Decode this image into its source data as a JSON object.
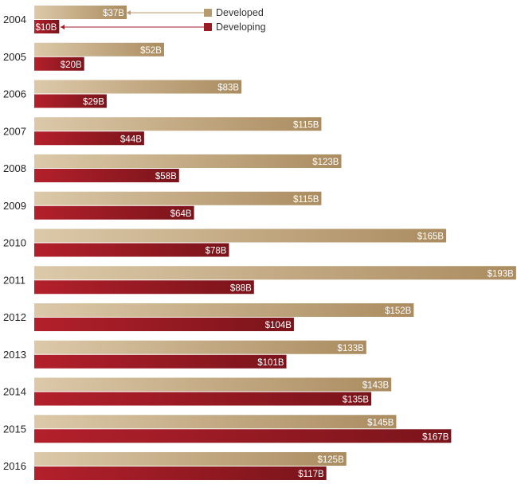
{
  "chart_data": {
    "type": "bar",
    "orientation": "horizontal",
    "categories": [
      "2004",
      "2005",
      "2006",
      "2007",
      "2008",
      "2009",
      "2010",
      "2011",
      "2012",
      "2013",
      "2014",
      "2015",
      "2016"
    ],
    "series": [
      {
        "name": "Developed",
        "color": "#b79a6f",
        "values": [
          37,
          52,
          83,
          115,
          123,
          115,
          165,
          193,
          152,
          133,
          143,
          145,
          125
        ],
        "labels": [
          "$37B",
          "$52B",
          "$83B",
          "$115B",
          "$123B",
          "$115B",
          "$165B",
          "$193B",
          "$152B",
          "$133B",
          "$143B",
          "$145B",
          "$125B"
        ]
      },
      {
        "name": "Developing",
        "color": "#9a1c24",
        "values": [
          10,
          20,
          29,
          44,
          58,
          64,
          78,
          88,
          104,
          101,
          135,
          167,
          117
        ],
        "labels": [
          "$10B",
          "$20B",
          "$29B",
          "$44B",
          "$58B",
          "$64B",
          "$78B",
          "$88B",
          "$104B",
          "$101B",
          "$135B",
          "$167B",
          "$117B"
        ]
      }
    ],
    "legend_position": "top-center",
    "grid": false
  }
}
